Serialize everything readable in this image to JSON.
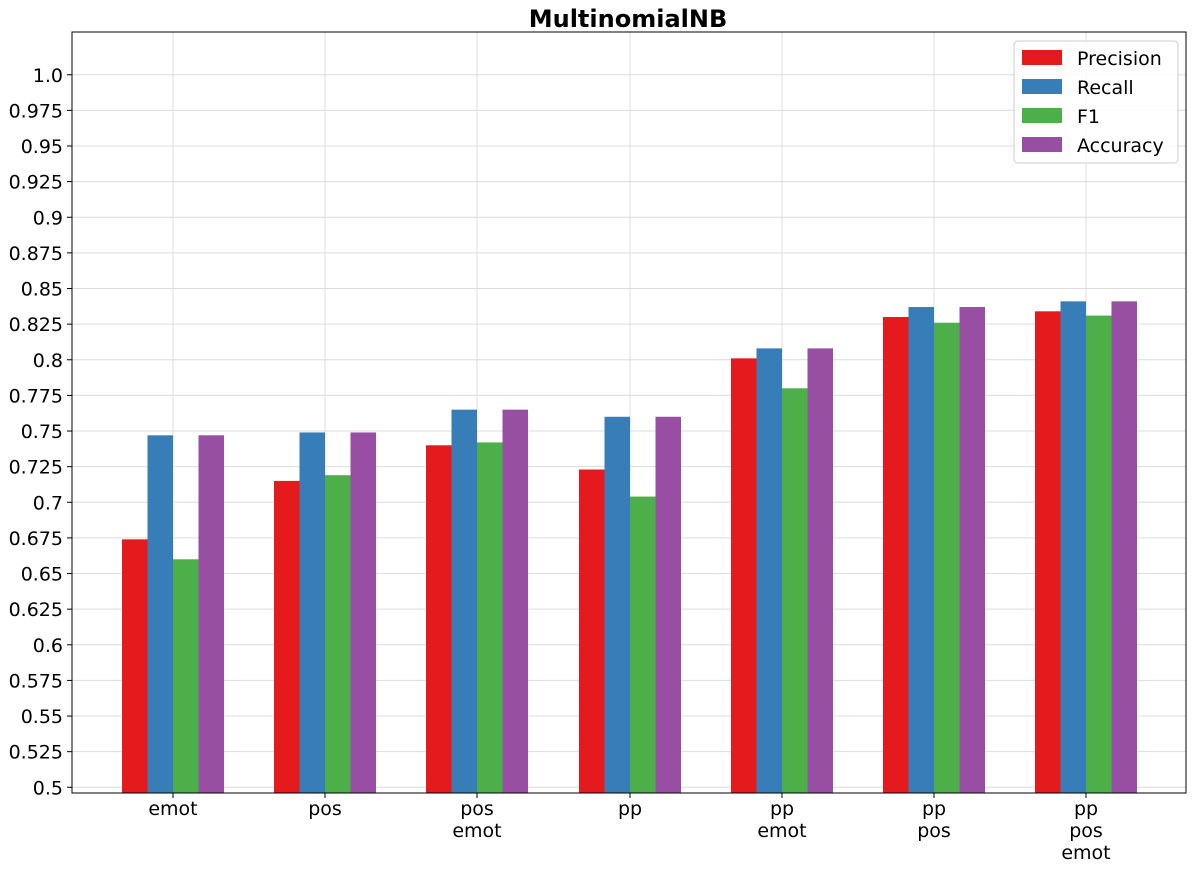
{
  "chart_data": {
    "type": "bar",
    "title": "MultinomialNB",
    "xlabel": "",
    "ylabel": "",
    "categories": [
      [
        "emot"
      ],
      [
        "pos"
      ],
      [
        "pos",
        "emot"
      ],
      [
        "pp"
      ],
      [
        "pp",
        "emot"
      ],
      [
        "pp",
        "pos"
      ],
      [
        "pp",
        "pos",
        "emot"
      ]
    ],
    "series": [
      {
        "name": "Precision",
        "color": "#e41a1c",
        "values": [
          0.674,
          0.715,
          0.74,
          0.723,
          0.801,
          0.83,
          0.834
        ]
      },
      {
        "name": "Recall",
        "color": "#377eb8",
        "values": [
          0.747,
          0.749,
          0.765,
          0.76,
          0.808,
          0.837,
          0.841
        ]
      },
      {
        "name": "F1",
        "color": "#4daf4a",
        "values": [
          0.66,
          0.719,
          0.742,
          0.704,
          0.78,
          0.826,
          0.831
        ]
      },
      {
        "name": "Accuracy",
        "color": "#984ea3",
        "values": [
          0.747,
          0.749,
          0.765,
          0.76,
          0.808,
          0.837,
          0.841
        ]
      }
    ],
    "ylim": [
      0.496,
      1.03
    ],
    "yticks": [
      0.5,
      0.525,
      0.55,
      0.575,
      0.6,
      0.625,
      0.65,
      0.675,
      0.7,
      0.725,
      0.75,
      0.775,
      0.8,
      0.825,
      0.85,
      0.875,
      0.9,
      0.925,
      0.95,
      0.975,
      1.0
    ],
    "ytick_labels": [
      "0.5",
      "0.525",
      "0.55",
      "0.575",
      "0.6",
      "0.625",
      "0.65",
      "0.675",
      "0.7",
      "0.725",
      "0.75",
      "0.775",
      "0.8",
      "0.825",
      "0.85",
      "0.875",
      "0.9",
      "0.925",
      "0.95",
      "0.975",
      "1.0"
    ],
    "grid": true,
    "legend_position": "top-right"
  }
}
